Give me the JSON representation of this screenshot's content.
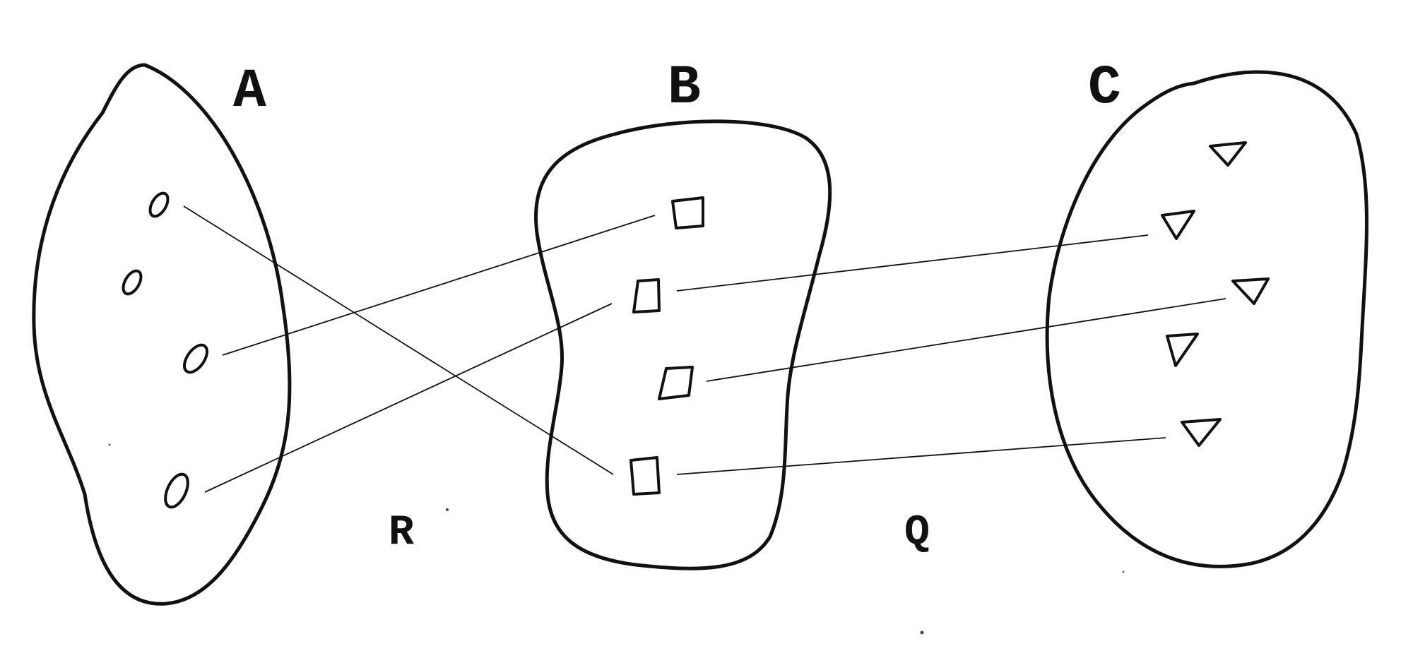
{
  "sets": [
    {
      "label": "A",
      "element_shape": "ellipse",
      "element_count": 4
    },
    {
      "label": "B",
      "element_shape": "square",
      "element_count": 4
    },
    {
      "label": "C",
      "element_shape": "triangle",
      "element_count": 5
    }
  ],
  "relations": [
    {
      "label": "R",
      "from": "A",
      "to": "B"
    },
    {
      "label": "Q",
      "from": "B",
      "to": "C"
    }
  ]
}
